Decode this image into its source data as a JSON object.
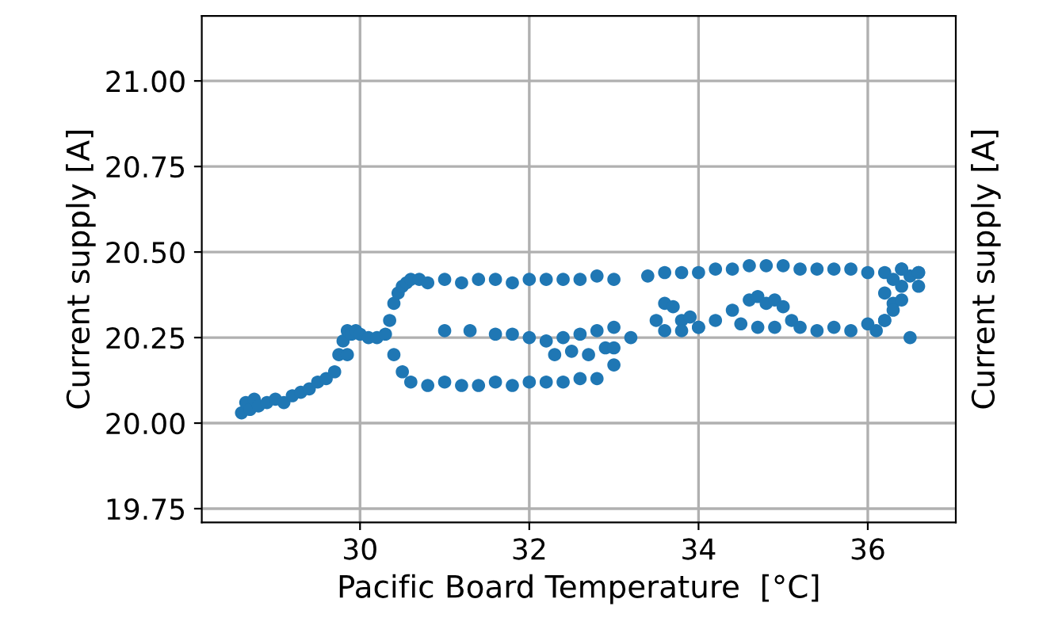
{
  "chart_data": {
    "type": "scatter",
    "xlabel": "Pacific Board Temperature  [°C]",
    "ylabel": "Current supply [A]",
    "annotations": [
      "Current supply [A]"
    ],
    "x": [
      28.6,
      28.65,
      28.7,
      28.75,
      28.8,
      28.9,
      29.0,
      29.1,
      29.2,
      29.3,
      29.4,
      29.5,
      29.6,
      29.7,
      29.75,
      29.8,
      29.85,
      29.85,
      29.9,
      29.95,
      30.0,
      30.1,
      30.2,
      30.3,
      30.35,
      30.4,
      30.4,
      30.45,
      30.5,
      30.5,
      30.55,
      30.6,
      30.7,
      30.8,
      31.0,
      31.2,
      31.4,
      31.6,
      31.8,
      32.0,
      32.2,
      32.4,
      32.6,
      32.8,
      33.0,
      30.6,
      30.8,
      31.0,
      31.2,
      31.4,
      31.6,
      31.8,
      32.0,
      32.2,
      32.4,
      32.6,
      32.8,
      33.0,
      33.2,
      33.4,
      33.6,
      33.8,
      34.0,
      34.2,
      34.4,
      34.6,
      34.8,
      35.0,
      35.2,
      35.4,
      35.6,
      35.8,
      36.0,
      36.2,
      36.4,
      36.6,
      31.0,
      31.3,
      31.6,
      31.8,
      32.0,
      32.2,
      32.4,
      32.6,
      32.8,
      33.0,
      32.3,
      32.5,
      32.7,
      32.9,
      33.0,
      33.5,
      33.6,
      33.7,
      33.8,
      33.9,
      34.0,
      33.6,
      33.8,
      34.0,
      34.2,
      34.4,
      34.6,
      34.7,
      34.8,
      34.9,
      35.0,
      35.1,
      34.5,
      34.7,
      34.9,
      35.2,
      35.4,
      35.6,
      35.8,
      36.0,
      36.1,
      36.2,
      36.3,
      36.4,
      36.5,
      36.6,
      36.2,
      36.3,
      36.4,
      36.5,
      36.6,
      36.3,
      36.4,
      36.2
    ],
    "values": [
      20.03,
      20.06,
      20.04,
      20.07,
      20.05,
      20.06,
      20.07,
      20.06,
      20.08,
      20.09,
      20.1,
      20.12,
      20.13,
      20.15,
      20.2,
      20.24,
      20.27,
      20.2,
      20.26,
      20.27,
      20.26,
      20.25,
      20.25,
      20.26,
      20.3,
      20.35,
      20.2,
      20.38,
      20.4,
      20.15,
      20.41,
      20.42,
      20.42,
      20.41,
      20.42,
      20.41,
      20.42,
      20.42,
      20.41,
      20.42,
      20.42,
      20.42,
      20.42,
      20.43,
      20.42,
      20.12,
      20.11,
      20.12,
      20.11,
      20.11,
      20.12,
      20.11,
      20.12,
      20.12,
      20.12,
      20.13,
      20.13,
      20.17,
      20.25,
      20.43,
      20.44,
      20.44,
      20.44,
      20.45,
      20.45,
      20.46,
      20.46,
      20.46,
      20.45,
      20.45,
      20.45,
      20.45,
      20.44,
      20.44,
      20.45,
      20.44,
      20.27,
      20.27,
      20.26,
      20.26,
      20.25,
      20.24,
      20.25,
      20.26,
      20.27,
      20.28,
      20.2,
      20.21,
      20.2,
      20.22,
      20.22,
      20.3,
      20.35,
      20.34,
      20.3,
      20.31,
      20.28,
      20.27,
      20.27,
      20.28,
      20.3,
      20.33,
      20.36,
      20.37,
      20.35,
      20.36,
      20.34,
      20.3,
      20.29,
      20.28,
      20.28,
      20.28,
      20.27,
      20.28,
      20.27,
      20.29,
      20.27,
      20.3,
      20.35,
      20.4,
      20.43,
      20.44,
      20.3,
      20.33,
      20.36,
      20.25,
      20.4,
      20.42,
      20.45,
      20.38
    ],
    "color": "#1f77b4",
    "marker": "circle",
    "xlim": [
      28.13,
      37.04
    ],
    "ylim": [
      19.71,
      21.19
    ],
    "xticks": [
      30,
      32,
      34,
      36
    ],
    "yticks": [
      {
        "value": 19.75,
        "label": "19.75"
      },
      {
        "value": 20.0,
        "label": "20.00"
      },
      {
        "value": 20.25,
        "label": "20.25"
      },
      {
        "value": 20.5,
        "label": "20.50"
      },
      {
        "value": 20.75,
        "label": "20.75"
      },
      {
        "value": 21.0,
        "label": "21.00"
      }
    ],
    "grid": true
  }
}
